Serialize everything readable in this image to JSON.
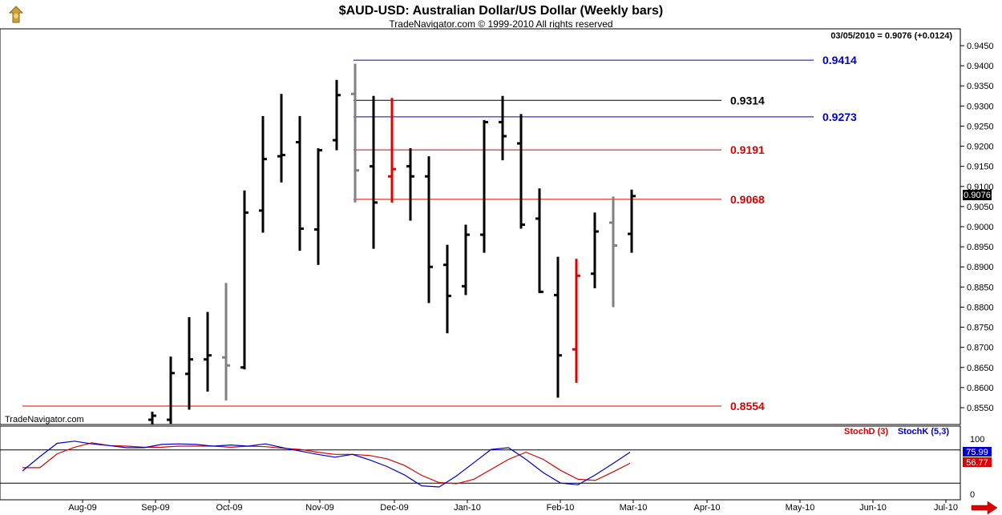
{
  "chart_data": {
    "type": "bar",
    "title": "$AUD-USD:  Australian Dollar/US Dollar  (Weekly bars)",
    "subtitle": "TradeNavigator.com © 1999-2010 All rights reserved",
    "status": "03/05/2010 = 0.9076 (+0.0124)",
    "watermark": "TradeNavigator.com",
    "last_price": "0.9076",
    "ylim": [
      0.8525,
      0.9465
    ],
    "y_ticks": [
      "0.9450",
      "0.9400",
      "0.9350",
      "0.9300",
      "0.9250",
      "0.9200",
      "0.9150",
      "0.9100",
      "0.9050",
      "0.9000",
      "0.8950",
      "0.8900",
      "0.8850",
      "0.8800",
      "0.8750",
      "0.8700",
      "0.8650",
      "0.8600",
      "0.8550"
    ],
    "x_labels": [
      "Aug-09",
      "Sep-09",
      "Oct-09",
      "Nov-09",
      "Dec-09",
      "Jan-10",
      "Feb-10",
      "Mar-10",
      "Apr-10",
      "May-10",
      "Jun-10",
      "Jul-10"
    ],
    "levels": [
      {
        "label": "0.9414",
        "value": 0.9414,
        "color": "#0000cc"
      },
      {
        "label": "0.9314",
        "value": 0.9314,
        "color": "#000000"
      },
      {
        "label": "0.9273",
        "value": 0.9273,
        "color": "#0000cc"
      },
      {
        "label": "0.9191",
        "value": 0.9191,
        "color": "#dd0000"
      },
      {
        "label": "0.9068",
        "value": 0.9068,
        "color": "#dd0000"
      },
      {
        "label": "0.8554",
        "value": 0.8554,
        "color": "#dd0000"
      }
    ],
    "bars": [
      {
        "high": 0.854,
        "low": 0.85,
        "open": 0.852,
        "close": 0.853,
        "color": "black"
      },
      {
        "high": 0.8677,
        "low": 0.851,
        "open": 0.852,
        "close": 0.8636,
        "color": "black"
      },
      {
        "high": 0.8775,
        "low": 0.8545,
        "open": 0.8634,
        "close": 0.867,
        "color": "black"
      },
      {
        "high": 0.8788,
        "low": 0.859,
        "open": 0.867,
        "close": 0.868,
        "color": "black"
      },
      {
        "high": 0.886,
        "low": 0.8568,
        "open": 0.8675,
        "close": 0.8655,
        "color": "gray"
      },
      {
        "high": 0.909,
        "low": 0.8645,
        "open": 0.865,
        "close": 0.9035,
        "color": "black"
      },
      {
        "high": 0.9275,
        "low": 0.8985,
        "open": 0.904,
        "close": 0.9168,
        "color": "black"
      },
      {
        "high": 0.933,
        "low": 0.911,
        "open": 0.9175,
        "close": 0.9178,
        "color": "black"
      },
      {
        "high": 0.9275,
        "low": 0.894,
        "open": 0.921,
        "close": 0.8995,
        "color": "black"
      },
      {
        "high": 0.9195,
        "low": 0.8905,
        "open": 0.8993,
        "close": 0.919,
        "color": "black"
      },
      {
        "high": 0.9365,
        "low": 0.919,
        "open": 0.9215,
        "close": 0.9327,
        "color": "black"
      },
      {
        "high": 0.9405,
        "low": 0.906,
        "open": 0.933,
        "close": 0.914,
        "color": "gray"
      },
      {
        "high": 0.9325,
        "low": 0.8945,
        "open": 0.915,
        "close": 0.906,
        "color": "black"
      },
      {
        "high": 0.932,
        "low": 0.906,
        "open": 0.9125,
        "close": 0.9143,
        "color": "red"
      },
      {
        "high": 0.9195,
        "low": 0.9015,
        "open": 0.915,
        "close": 0.9125,
        "color": "black"
      },
      {
        "high": 0.9175,
        "low": 0.881,
        "open": 0.9125,
        "close": 0.89,
        "color": "black"
      },
      {
        "high": 0.8955,
        "low": 0.8735,
        "open": 0.8905,
        "close": 0.8828,
        "color": "black"
      },
      {
        "high": 0.9005,
        "low": 0.883,
        "open": 0.8852,
        "close": 0.898,
        "color": "black"
      },
      {
        "high": 0.9265,
        "low": 0.8935,
        "open": 0.898,
        "close": 0.926,
        "color": "black"
      },
      {
        "high": 0.9325,
        "low": 0.9165,
        "open": 0.926,
        "close": 0.9225,
        "color": "black"
      },
      {
        "high": 0.928,
        "low": 0.8995,
        "open": 0.9207,
        "close": 0.9005,
        "color": "black"
      },
      {
        "high": 0.9095,
        "low": 0.8835,
        "open": 0.902,
        "close": 0.8838,
        "color": "black"
      },
      {
        "high": 0.8925,
        "low": 0.8575,
        "open": 0.883,
        "close": 0.868,
        "color": "black"
      },
      {
        "high": 0.892,
        "low": 0.8612,
        "open": 0.8695,
        "close": 0.8878,
        "color": "red"
      },
      {
        "high": 0.9035,
        "low": 0.8847,
        "open": 0.8883,
        "close": 0.8988,
        "color": "black"
      },
      {
        "high": 0.9075,
        "low": 0.88,
        "open": 0.901,
        "close": 0.8953,
        "color": "gray"
      },
      {
        "high": 0.9092,
        "low": 0.8935,
        "open": 0.8982,
        "close": 0.9076,
        "color": "black"
      }
    ],
    "stoch": {
      "legend": [
        {
          "name": "StochD (3)",
          "color": "#dd0000"
        },
        {
          "name": "StochK (5,3)",
          "color": "#0000cc"
        }
      ],
      "ylim": [
        0,
        100
      ],
      "y_ticks": [
        "100",
        "0"
      ],
      "reference_lines": [
        80,
        20
      ],
      "k_label": "75.99",
      "d_label": "56.77",
      "k": [
        42,
        68,
        92,
        96,
        91,
        88,
        84,
        84,
        90,
        91,
        90,
        87,
        89,
        87,
        91,
        84,
        78,
        72,
        67,
        72,
        62,
        50,
        35,
        15,
        13,
        33,
        57,
        81,
        84,
        63,
        39,
        20,
        17,
        35,
        55,
        76
      ],
      "d": [
        48,
        48,
        73,
        85,
        93,
        88,
        87,
        85,
        85,
        87,
        87,
        87,
        85,
        87,
        86,
        83,
        81,
        76,
        72,
        72,
        70,
        64,
        52,
        34,
        21,
        19,
        27,
        45,
        63,
        76,
        63,
        43,
        27,
        25,
        40,
        56
      ]
    }
  }
}
